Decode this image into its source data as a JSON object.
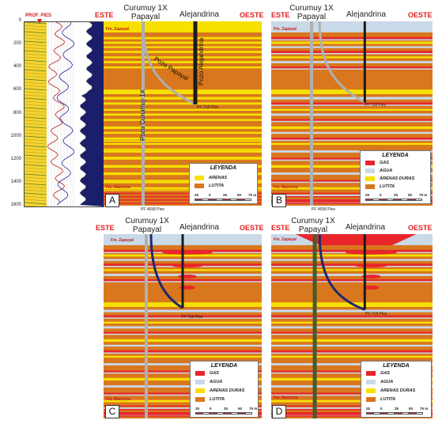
{
  "header": {
    "prof_label": "PROF. PIES",
    "este": "ESTE",
    "oeste": "OESTE",
    "well1_line1": "Curumuy 1X",
    "well1_line2": "Papayal",
    "well2": "Alejandrina"
  },
  "depth_ticks": [
    "0",
    "200",
    "400",
    "600",
    "800",
    "1000",
    "1200",
    "1400",
    "1600"
  ],
  "panel_a": {
    "tag": "A",
    "fm_top": "Fm. Zapayal",
    "fm_bottom": "Fm. Mancora",
    "pf_short": "PF 718 Pies",
    "pf_long": "PF 4658 Pies",
    "pozo_curumuy": "Pozo Curumuy 1X",
    "pozo_papayal": "Pozo Papayal",
    "pozo_alejandrina": "Pozo Alejandrina",
    "legend_title": "LEYENDA",
    "legend_items": [
      "ARENAS",
      "LUTITA"
    ]
  },
  "panel_b": {
    "tag": "B",
    "fm_top": "Fm. Zapayal",
    "fm_bottom": "Fm. Mancora",
    "pf_short": "PF 718 Pies",
    "pf_long": "PF 4658 Pies",
    "legend_title": "LEYENDA",
    "legend_items": [
      "GAS",
      "AGUA",
      "ARENAS DURAS",
      "LUTITA"
    ]
  },
  "panel_c": {
    "tag": "C",
    "fm_top": "Fm. Zapayal",
    "fm_bottom": "Fm. Mancora",
    "pf_short": "PF 718 Pies",
    "legend_title": "LEYENDA",
    "legend_items": [
      "GAS",
      "AGUA",
      "ARENAS DURAS",
      "LUTITA"
    ]
  },
  "panel_d": {
    "tag": "D",
    "fm_top": "Fm. Zapayal",
    "fm_bottom": "Fm. Mancora",
    "pf_short": "PF 718 Pies",
    "legend_title": "LEYENDA",
    "legend_items": [
      "GAS",
      "AGUA",
      "ARENAS DURAS",
      "LUTITA"
    ]
  },
  "scale_ticks": [
    "25",
    "0",
    "25",
    "50",
    "75 m"
  ],
  "colors": {
    "gas": "#e8262a",
    "agua": "#c9d9e8",
    "arenas": "#f7e000",
    "lutita": "#d9771e",
    "well_dark": "#1a1a1a",
    "well_blue": "#1f2a6b",
    "well_gray": "#b0b0b0",
    "well_green": "#4a5a2a",
    "title_red": "#e02020"
  }
}
